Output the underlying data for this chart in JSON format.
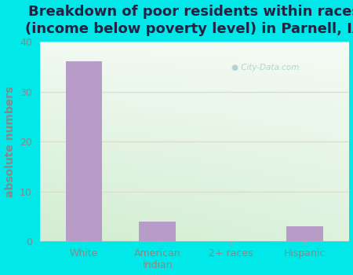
{
  "title": "Breakdown of poor residents within races\n(income below poverty level) in Parnell, IA",
  "categories": [
    "White",
    "American\nIndian",
    "2+ races",
    "Hispanic"
  ],
  "values": [
    36,
    4,
    0,
    3
  ],
  "bar_color": "#b89cc8",
  "ylabel": "absolute numbers",
  "ylim": [
    0,
    40
  ],
  "yticks": [
    0,
    10,
    20,
    30,
    40
  ],
  "background_color": "#00e8e8",
  "grad_color_topleft": "#e8f5e8",
  "grad_color_topright": "#f0f8f0",
  "grad_color_bottom": "#d8eed8",
  "title_color": "#222244",
  "title_fontsize": 13,
  "ylabel_fontsize": 10,
  "tick_fontsize": 9,
  "tick_color": "#888888",
  "watermark": "City-Data.com",
  "watermark_color": "#aacccc",
  "grid_color": "#ddddcc"
}
